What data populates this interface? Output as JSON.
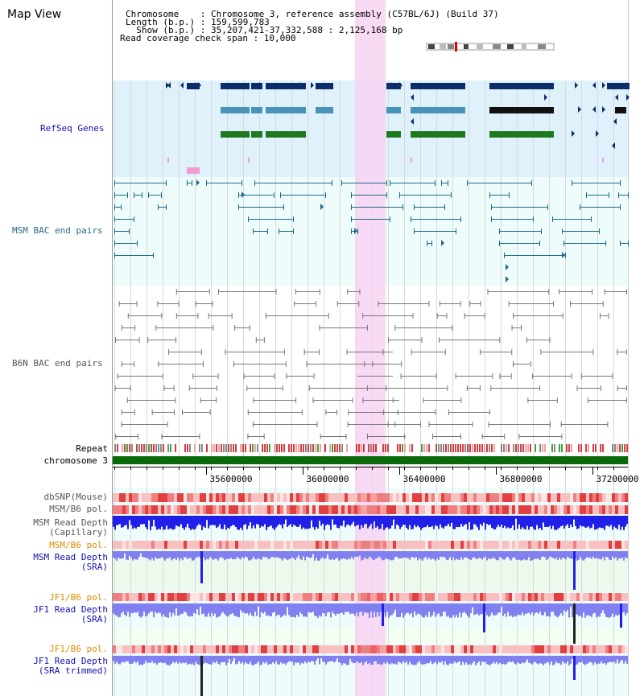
{
  "window": {
    "title": "Map View"
  },
  "header": {
    "lines": [
      "Chromosome    : Chromosome 3, reference assembly (C57BL/6J) (Build 37)",
      "Length (b.p.) : 159,599,783",
      "  Show (b.p.) : 35,207,421-37,332,588 : 2,125,168 bp",
      "Read coverage check span : 10,000"
    ]
  },
  "tracks": {
    "refseq": "RefSeq Genes",
    "msm_bac": "MSM BAC end pairs",
    "b6n_bac": "B6N BAC end pairs",
    "repeat": "Repeat",
    "chromosome": "chromosome 3",
    "dbsnp": "dbSNP(Mouse)",
    "msm_b6_pol": "MSM/B6 pol.",
    "msm_depth_cap_1": "MSM Read Depth",
    "msm_depth_cap_2": "(Capillary)",
    "msm_b6_pol_sra": "MSM/B6 pol.",
    "msm_depth_sra_1": "MSM Read Depth",
    "msm_depth_sra_2": "(SRA)",
    "jf1_b6_pol": "JF1/B6 pol.",
    "jf1_depth_sra_1": "JF1 Read Depth",
    "jf1_depth_sra_2": "(SRA)",
    "jf1_b6_pol_trim": "JF1/B6 pol.",
    "jf1_depth_trim_1": "JF1 Read Depth",
    "jf1_depth_trim_2": "(SRA trimmed)"
  },
  "axis": {
    "ticks": [
      "35600000",
      "36000000",
      "36400000",
      "36800000",
      "37200000"
    ]
  },
  "colors": {
    "refseq_bg": "#dff1fb",
    "msm_bac_bg": "#eefcfc",
    "highlight": "#f7d4f3",
    "gene_dark": "#0b2e6b",
    "gene_mid": "#4a93b8",
    "gene_green": "#1f7a1f",
    "msm_pair": "#1a6a86",
    "b6n_pair": "#777777",
    "chromosome_bar": "#0a6a0a",
    "depth_blue": "#2020e8",
    "depth_light": "#8080f0",
    "pol_red": "#e05050",
    "label_blue": "#1010b0",
    "label_orange": "#e08a00",
    "label_teal": "#2a6a86"
  }
}
